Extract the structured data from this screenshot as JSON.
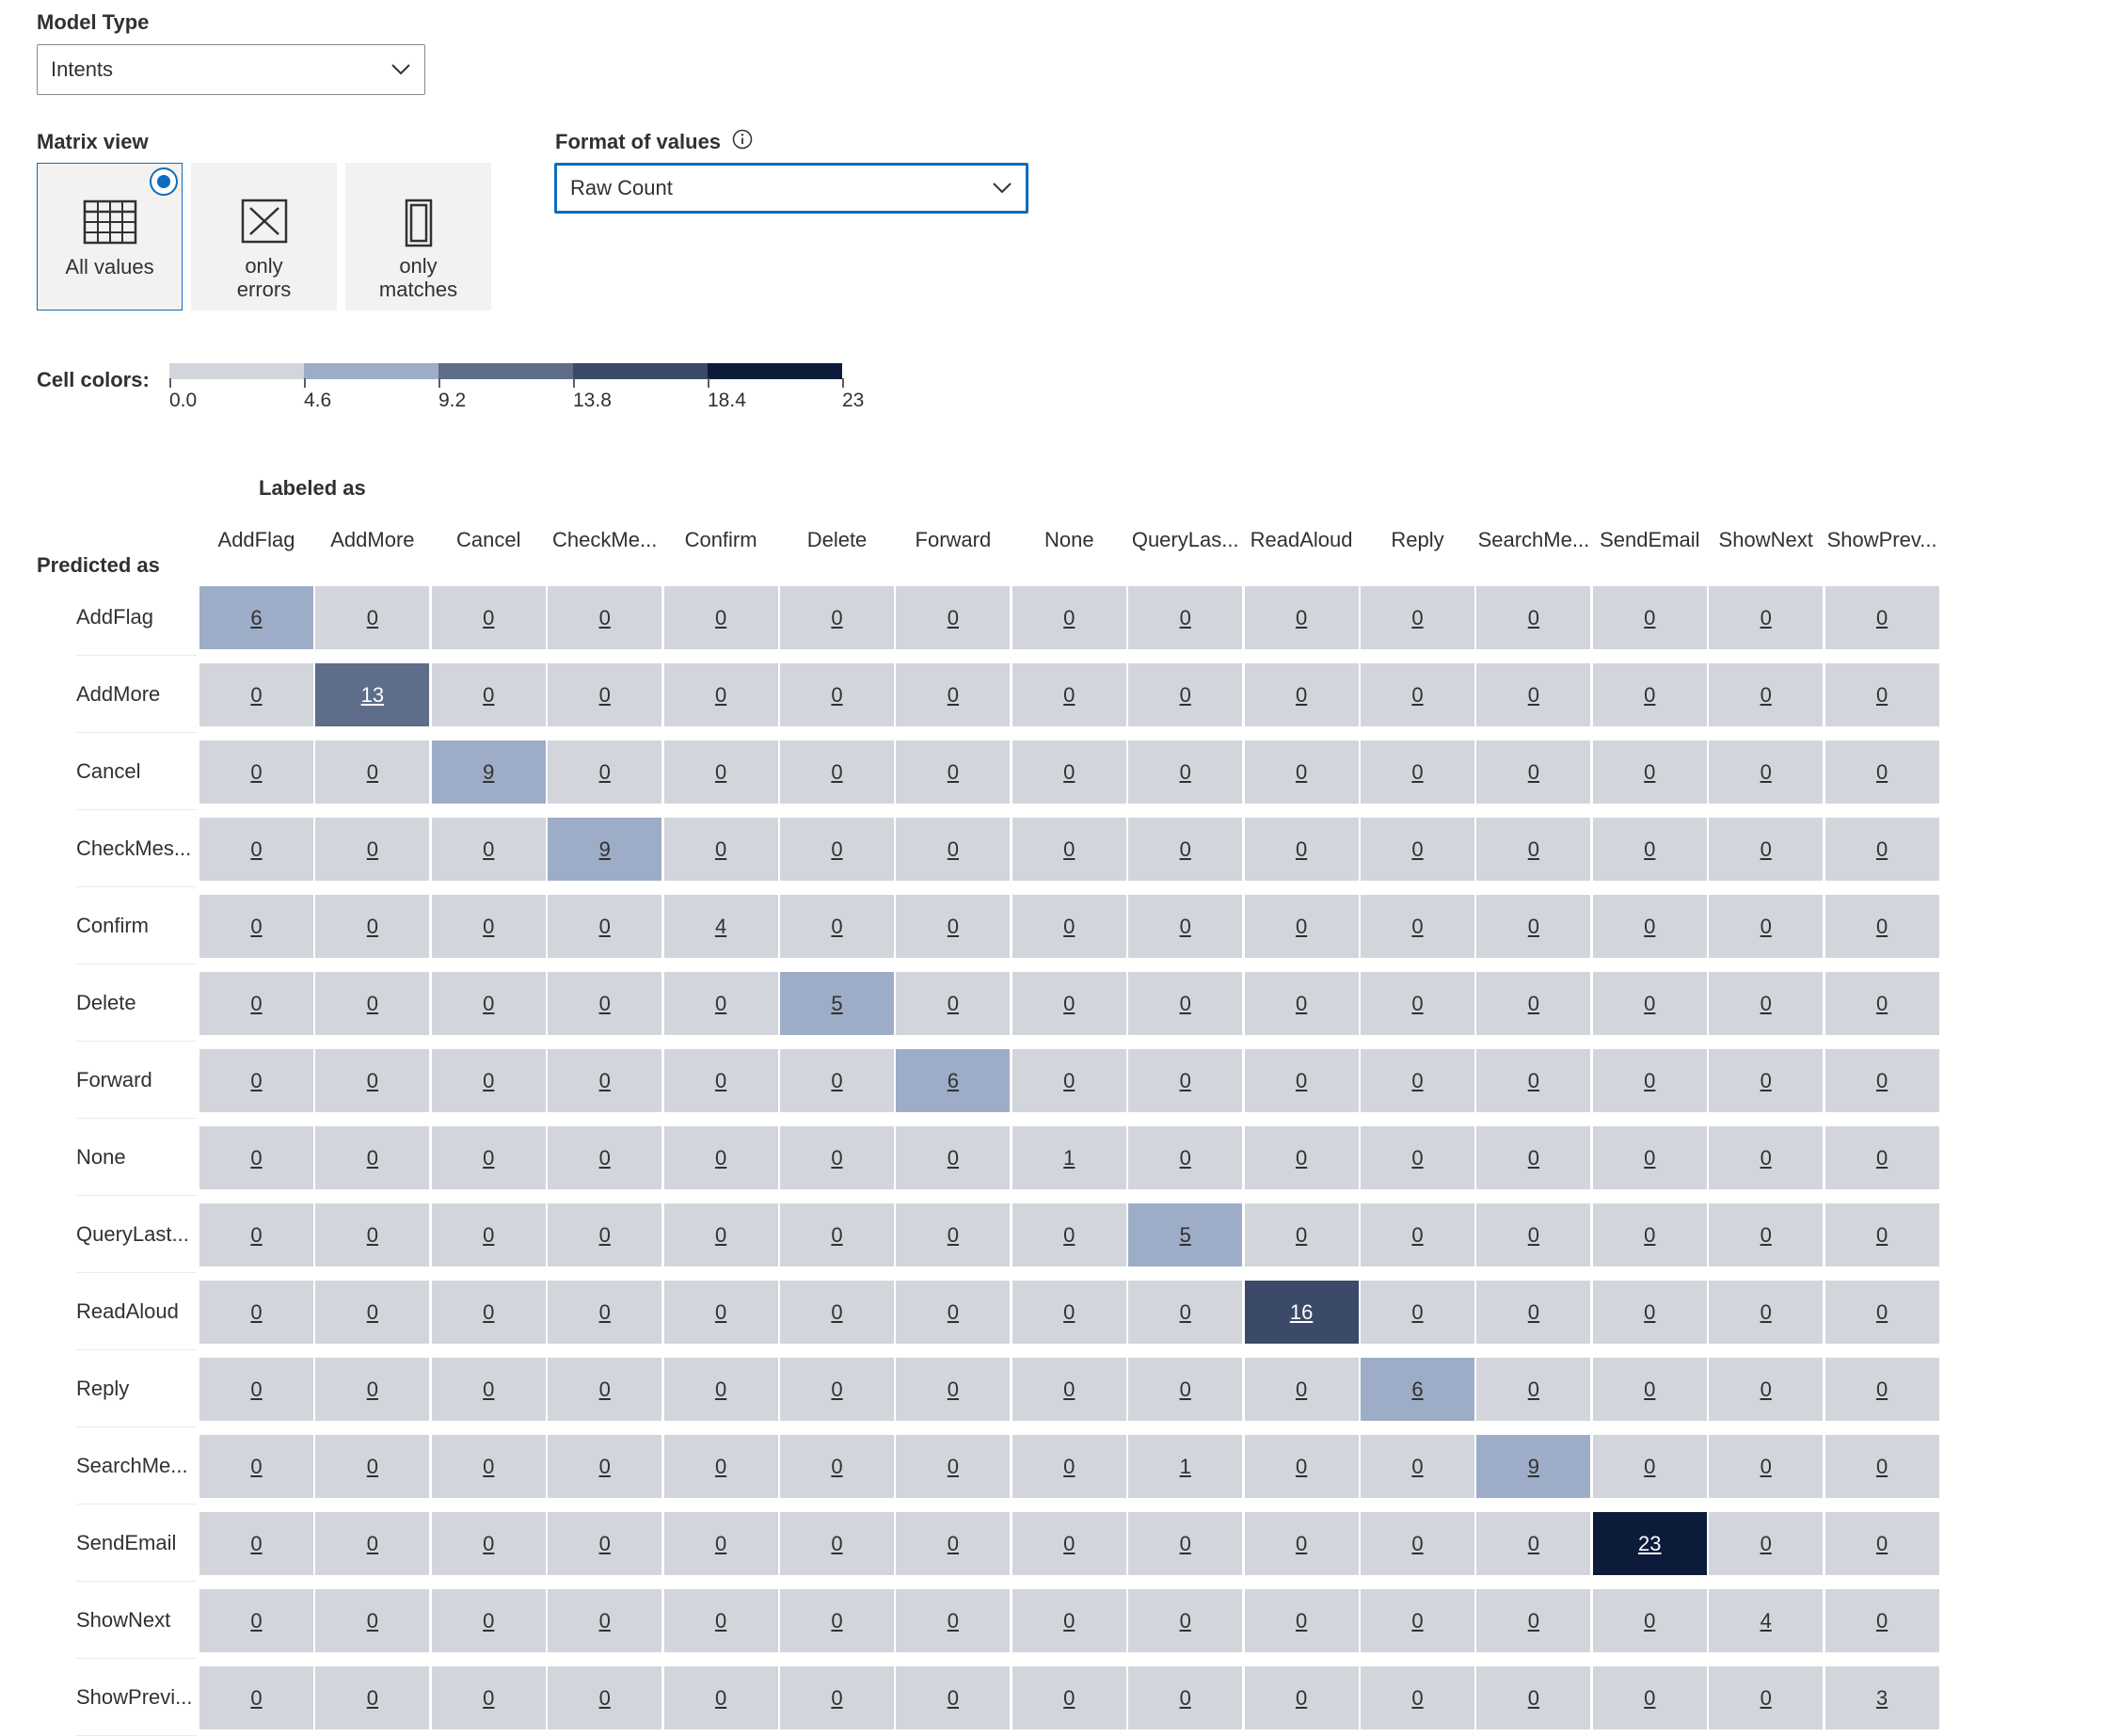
{
  "model_type": {
    "label": "Model Type",
    "value": "Intents"
  },
  "matrix_view": {
    "label": "Matrix view",
    "options": [
      {
        "line1": "All values",
        "line2": "",
        "icon": "table-icon",
        "selected": true
      },
      {
        "line1": "only",
        "line2": "errors",
        "icon": "x-box-icon",
        "selected": false
      },
      {
        "line1": "only",
        "line2": "matches",
        "icon": "column-icon",
        "selected": false
      }
    ]
  },
  "format_of_values": {
    "label": "Format of values",
    "info_icon": "info-icon",
    "value": "Raw Count"
  },
  "cell_colors": {
    "label": "Cell colors:",
    "ticks": [
      "0.0",
      "4.6",
      "9.2",
      "13.8",
      "18.4",
      "23"
    ],
    "colors": [
      "#d2d5db",
      "#9dadc8",
      "#5e6d89",
      "#3a4a68",
      "#0d1b3b"
    ]
  },
  "matrix": {
    "labeled_as": "Labeled as",
    "predicted_as": "Predicted as",
    "columns": [
      "AddFlag",
      "AddMore",
      "Cancel",
      "CheckMe...",
      "Confirm",
      "Delete",
      "Forward",
      "None",
      "QueryLas...",
      "ReadAloud",
      "Reply",
      "SearchMe...",
      "SendEmail",
      "ShowNext",
      "ShowPrev..."
    ],
    "rows": [
      "AddFlag",
      "AddMore",
      "Cancel",
      "CheckMes...",
      "Confirm",
      "Delete",
      "Forward",
      "None",
      "QueryLast...",
      "ReadAloud",
      "Reply",
      "SearchMe...",
      "SendEmail",
      "ShowNext",
      "ShowPrevi..."
    ],
    "values": [
      [
        6,
        0,
        0,
        0,
        0,
        0,
        0,
        0,
        0,
        0,
        0,
        0,
        0,
        0,
        0
      ],
      [
        0,
        13,
        0,
        0,
        0,
        0,
        0,
        0,
        0,
        0,
        0,
        0,
        0,
        0,
        0
      ],
      [
        0,
        0,
        9,
        0,
        0,
        0,
        0,
        0,
        0,
        0,
        0,
        0,
        0,
        0,
        0
      ],
      [
        0,
        0,
        0,
        9,
        0,
        0,
        0,
        0,
        0,
        0,
        0,
        0,
        0,
        0,
        0
      ],
      [
        0,
        0,
        0,
        0,
        4,
        0,
        0,
        0,
        0,
        0,
        0,
        0,
        0,
        0,
        0
      ],
      [
        0,
        0,
        0,
        0,
        0,
        5,
        0,
        0,
        0,
        0,
        0,
        0,
        0,
        0,
        0
      ],
      [
        0,
        0,
        0,
        0,
        0,
        0,
        6,
        0,
        0,
        0,
        0,
        0,
        0,
        0,
        0
      ],
      [
        0,
        0,
        0,
        0,
        0,
        0,
        0,
        1,
        0,
        0,
        0,
        0,
        0,
        0,
        0
      ],
      [
        0,
        0,
        0,
        0,
        0,
        0,
        0,
        0,
        5,
        0,
        0,
        0,
        0,
        0,
        0
      ],
      [
        0,
        0,
        0,
        0,
        0,
        0,
        0,
        0,
        0,
        16,
        0,
        0,
        0,
        0,
        0
      ],
      [
        0,
        0,
        0,
        0,
        0,
        0,
        0,
        0,
        0,
        0,
        6,
        0,
        0,
        0,
        0
      ],
      [
        0,
        0,
        0,
        0,
        0,
        0,
        0,
        0,
        1,
        0,
        0,
        9,
        0,
        0,
        0
      ],
      [
        0,
        0,
        0,
        0,
        0,
        0,
        0,
        0,
        0,
        0,
        0,
        0,
        23,
        0,
        0
      ],
      [
        0,
        0,
        0,
        0,
        0,
        0,
        0,
        0,
        0,
        0,
        0,
        0,
        0,
        4,
        0
      ],
      [
        0,
        0,
        0,
        0,
        0,
        0,
        0,
        0,
        0,
        0,
        0,
        0,
        0,
        0,
        3
      ]
    ]
  }
}
